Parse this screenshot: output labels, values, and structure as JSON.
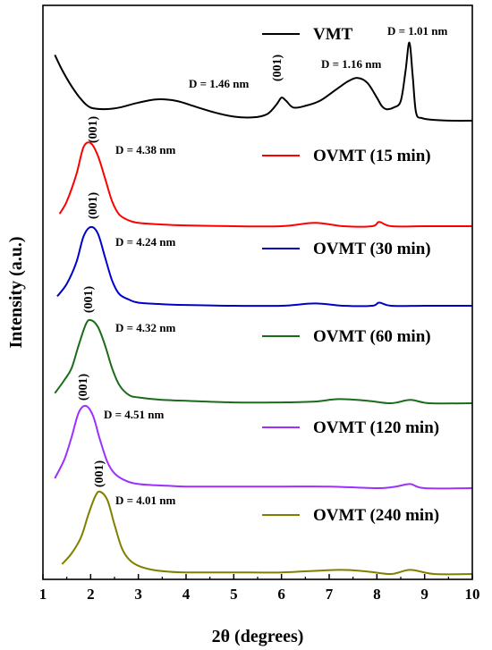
{
  "chart_data": {
    "type": "line",
    "title": "",
    "xlabel": "2θ (degrees)",
    "ylabel": "Intensity (a.u.)",
    "xlim": [
      1,
      10
    ],
    "x_ticks": [
      "1",
      "2",
      "3",
      "4",
      "5",
      "6",
      "7",
      "8",
      "9",
      "10"
    ],
    "y_ticks_labeled": false,
    "grid": false,
    "legend_placement": "right, beside each curve",
    "series": [
      {
        "name": "VMT",
        "color": "#000000",
        "x": [
          1.25,
          1.4,
          1.6,
          1.8,
          2.0,
          2.3,
          2.6,
          3.0,
          3.4,
          3.8,
          4.2,
          4.6,
          5.0,
          5.4,
          5.7,
          5.9,
          6.0,
          6.1,
          6.25,
          6.5,
          6.8,
          7.1,
          7.4,
          7.6,
          7.8,
          8.0,
          8.1,
          8.2,
          8.35,
          8.5,
          8.6,
          8.68,
          8.75,
          8.82,
          8.95,
          9.2,
          9.6,
          10.0
        ],
        "y": [
          0.8,
          0.62,
          0.42,
          0.26,
          0.16,
          0.14,
          0.16,
          0.22,
          0.26,
          0.24,
          0.17,
          0.1,
          0.05,
          0.04,
          0.08,
          0.2,
          0.28,
          0.24,
          0.16,
          0.18,
          0.24,
          0.36,
          0.48,
          0.52,
          0.46,
          0.28,
          0.18,
          0.14,
          0.16,
          0.24,
          0.6,
          0.95,
          0.55,
          0.1,
          0.03,
          0.01,
          0.0,
          0.0
        ]
      },
      {
        "name": "OVMT (15 min)",
        "color": "#ff0000",
        "x": [
          1.35,
          1.5,
          1.7,
          1.85,
          2.0,
          2.15,
          2.3,
          2.45,
          2.6,
          2.8,
          3.0,
          3.5,
          4.0,
          5.0,
          6.0,
          6.7,
          7.3,
          7.9,
          8.05,
          8.3,
          9.0,
          10.0
        ],
        "y": [
          0.15,
          0.3,
          0.62,
          0.95,
          1.0,
          0.85,
          0.58,
          0.3,
          0.14,
          0.07,
          0.04,
          0.02,
          0.01,
          0.0,
          0.0,
          0.04,
          0.0,
          0.0,
          0.05,
          0.0,
          0.0,
          0.0
        ]
      },
      {
        "name": "OVMT (30 min)",
        "color": "#0000cc",
        "x": [
          1.3,
          1.5,
          1.7,
          1.85,
          2.0,
          2.15,
          2.3,
          2.45,
          2.6,
          2.8,
          3.0,
          3.5,
          4.0,
          5.0,
          6.0,
          6.7,
          7.3,
          7.9,
          8.05,
          8.3,
          9.0,
          10.0
        ],
        "y": [
          0.12,
          0.28,
          0.55,
          0.88,
          1.0,
          0.92,
          0.62,
          0.32,
          0.15,
          0.08,
          0.04,
          0.02,
          0.01,
          0.0,
          0.0,
          0.03,
          0.0,
          0.0,
          0.04,
          0.0,
          0.0,
          0.0
        ]
      },
      {
        "name": "OVMT (60 min)",
        "color": "#1a6b1a",
        "x": [
          1.25,
          1.45,
          1.6,
          1.75,
          1.9,
          2.0,
          2.15,
          2.3,
          2.45,
          2.6,
          2.8,
          3.0,
          3.5,
          4.0,
          5.0,
          6.0,
          6.7,
          7.2,
          7.8,
          8.3,
          8.7,
          9.1,
          10.0
        ],
        "y": [
          0.12,
          0.28,
          0.42,
          0.7,
          0.95,
          1.0,
          0.92,
          0.7,
          0.42,
          0.22,
          0.1,
          0.07,
          0.04,
          0.03,
          0.01,
          0.01,
          0.02,
          0.05,
          0.03,
          0.0,
          0.04,
          0.0,
          0.0
        ]
      },
      {
        "name": "OVMT (120 min)",
        "color": "#9b30ff",
        "x": [
          1.25,
          1.45,
          1.6,
          1.75,
          1.9,
          2.05,
          2.2,
          2.35,
          2.5,
          2.7,
          2.9,
          3.2,
          3.6,
          4.0,
          5.0,
          6.0,
          7.0,
          8.0,
          8.4,
          8.7,
          9.0,
          10.0
        ],
        "y": [
          0.12,
          0.35,
          0.62,
          0.92,
          1.0,
          0.88,
          0.58,
          0.32,
          0.18,
          0.1,
          0.06,
          0.04,
          0.03,
          0.02,
          0.02,
          0.02,
          0.02,
          0.0,
          0.02,
          0.05,
          0.0,
          0.0
        ]
      },
      {
        "name": "OVMT (240 min)",
        "color": "#808000",
        "x": [
          1.4,
          1.6,
          1.8,
          1.95,
          2.1,
          2.2,
          2.35,
          2.5,
          2.65,
          2.8,
          3.0,
          3.3,
          3.6,
          4.0,
          5.0,
          6.0,
          7.2,
          7.8,
          8.3,
          8.7,
          9.2,
          10.0
        ],
        "y": [
          0.12,
          0.25,
          0.45,
          0.72,
          0.95,
          1.0,
          0.9,
          0.6,
          0.32,
          0.18,
          0.1,
          0.05,
          0.03,
          0.02,
          0.02,
          0.02,
          0.05,
          0.03,
          0.0,
          0.05,
          0.0,
          0.0
        ]
      }
    ],
    "annotations": {
      "d_labels": [
        {
          "text": "D = 1.01 nm",
          "series": "VMT"
        },
        {
          "text": "D = 1.16 nm",
          "series": "VMT"
        },
        {
          "text": "D = 1.46 nm",
          "series": "VMT"
        },
        {
          "text": "D = 4.38 nm",
          "series": "OVMT (15 min)"
        },
        {
          "text": "D = 4.24 nm",
          "series": "OVMT (30 min)"
        },
        {
          "text": "D = 4.32 nm",
          "series": "OVMT (60 min)"
        },
        {
          "text": "D = 4.51 nm",
          "series": "OVMT (120 min)"
        },
        {
          "text": "D = 4.01 nm",
          "series": "OVMT (240 min)"
        }
      ],
      "peak_labels": [
        {
          "text": "(001)",
          "series": "VMT",
          "x": 6.0
        },
        {
          "text": "(001)",
          "series": "OVMT (15 min)",
          "x": 2.0
        },
        {
          "text": "(001)",
          "series": "OVMT (30 min)",
          "x": 2.0
        },
        {
          "text": "(001)",
          "series": "OVMT (60 min)",
          "x": 2.0
        },
        {
          "text": "(001)",
          "series": "OVMT (120 min)",
          "x": 1.9
        },
        {
          "text": "(001)",
          "series": "OVMT (240 min)",
          "x": 2.2
        }
      ]
    }
  }
}
